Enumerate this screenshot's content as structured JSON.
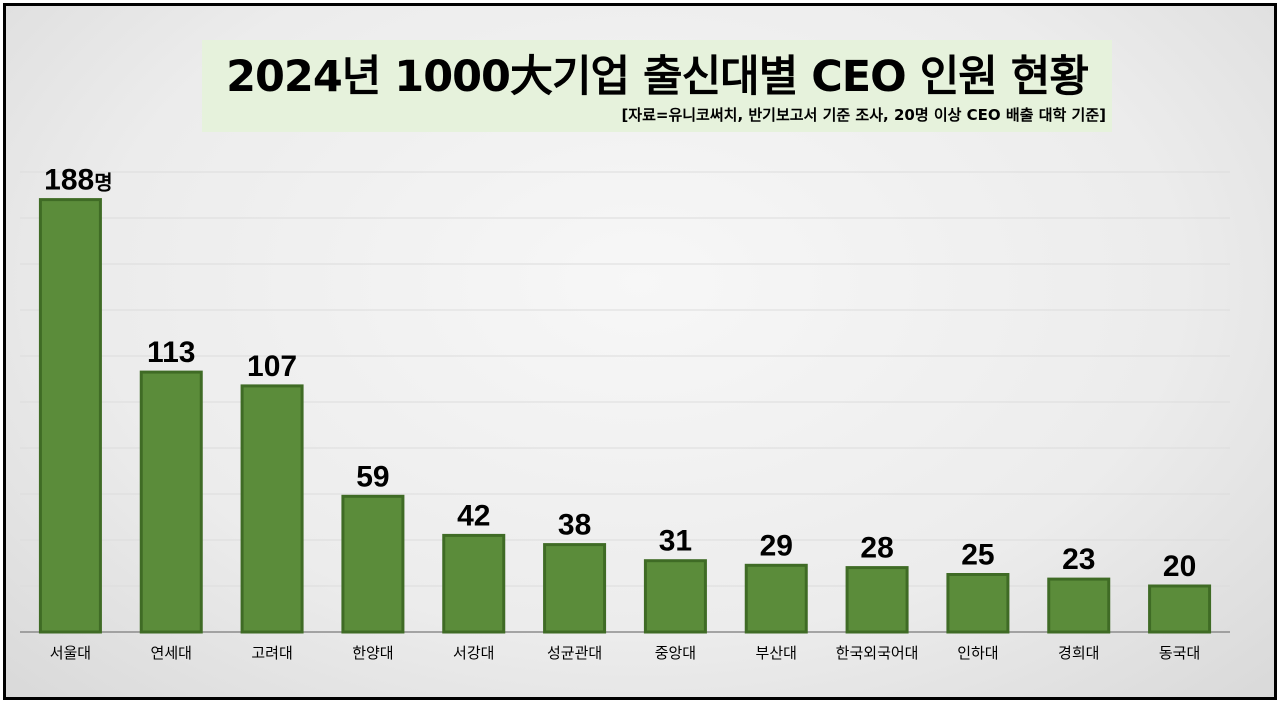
{
  "chart_data": {
    "type": "bar",
    "title": "2024년 1000大기업 출신대별 CEO 인원 현황",
    "subtitle": "[자료=유니코써치, 반기보고서 기준 조사, 20명 이상 CEO 배출 대학 기준]",
    "categories": [
      "서울대",
      "연세대",
      "고려대",
      "한양대",
      "서강대",
      "성균관대",
      "중앙대",
      "부산대",
      "한국외국어대",
      "인하대",
      "경희대",
      "동국대"
    ],
    "values": [
      188,
      113,
      107,
      59,
      42,
      38,
      31,
      29,
      28,
      25,
      23,
      20
    ],
    "value_unit": "명",
    "ylim": [
      0,
      200
    ],
    "grid": true,
    "bar_color": "#5b8c3a",
    "bar_border_color": "#3f6b25"
  }
}
